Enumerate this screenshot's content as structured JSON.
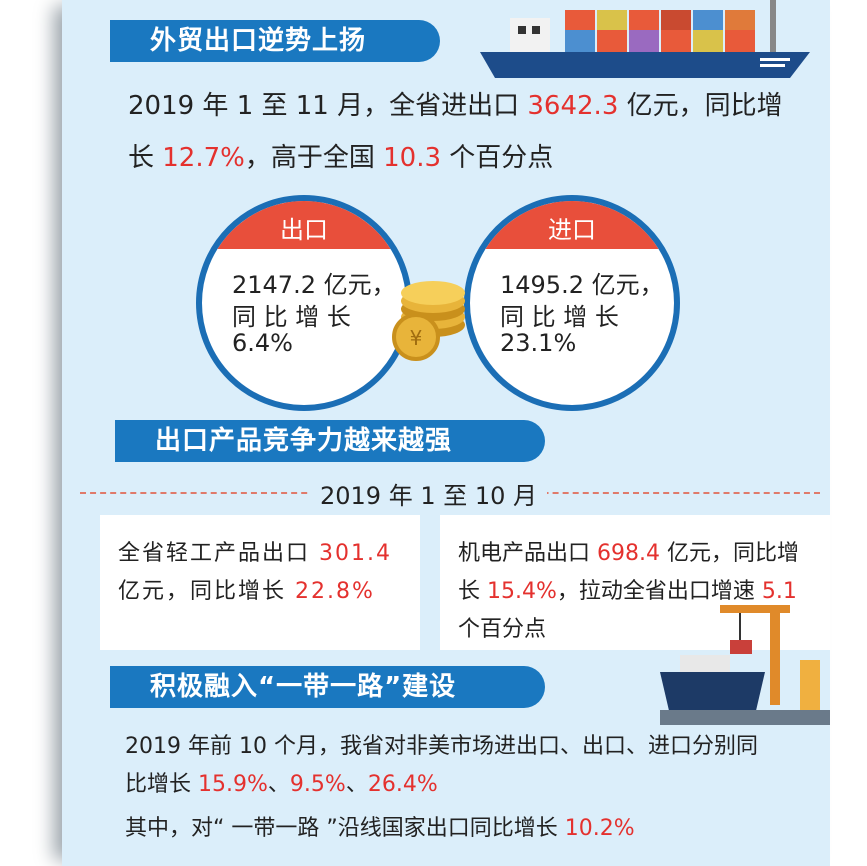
{
  "banners": [
    "外贸出口逆势上扬",
    "出口产品竞争力越来越强",
    "积极融入“一带一路”建设"
  ],
  "intro": [
    "2019 年 1 至 11 月，全省进出口 ",
    "3642.3",
    " 亿元，同比增长 ",
    "12.7%",
    "，高于全国 ",
    "10.3",
    " 个百分点"
  ],
  "circles": [
    {
      "label": "出口",
      "lines": [
        "2147.2 亿元，",
        "同 比 增 长",
        "6.4%"
      ]
    },
    {
      "label": "进口",
      "lines": [
        "1495.2 亿元，",
        "同 比 增 长",
        "23.1%"
      ]
    }
  ],
  "period": "2019 年 1 至 10 月",
  "boxes": [
    [
      "全省轻工产品出口 ",
      "301.4",
      " 亿元，同比增长 ",
      "22.8%"
    ],
    [
      "机电产品出口 ",
      "698.4",
      " 亿元，同比增长 ",
      "15.4%",
      "，拉动全省出口增速 ",
      "5.1",
      " 个百分点"
    ]
  ],
  "paragraphs": [
    [
      "2019 年前 10 个月，我省对非美市场进出口、出口、进口分别同比增长 ",
      "15.9%",
      "、",
      "9.5%",
      "、",
      "26.4%"
    ],
    [
      "其中，对“ 一带一路 ”沿线国家出口同比增长 ",
      "10.2%"
    ]
  ]
}
